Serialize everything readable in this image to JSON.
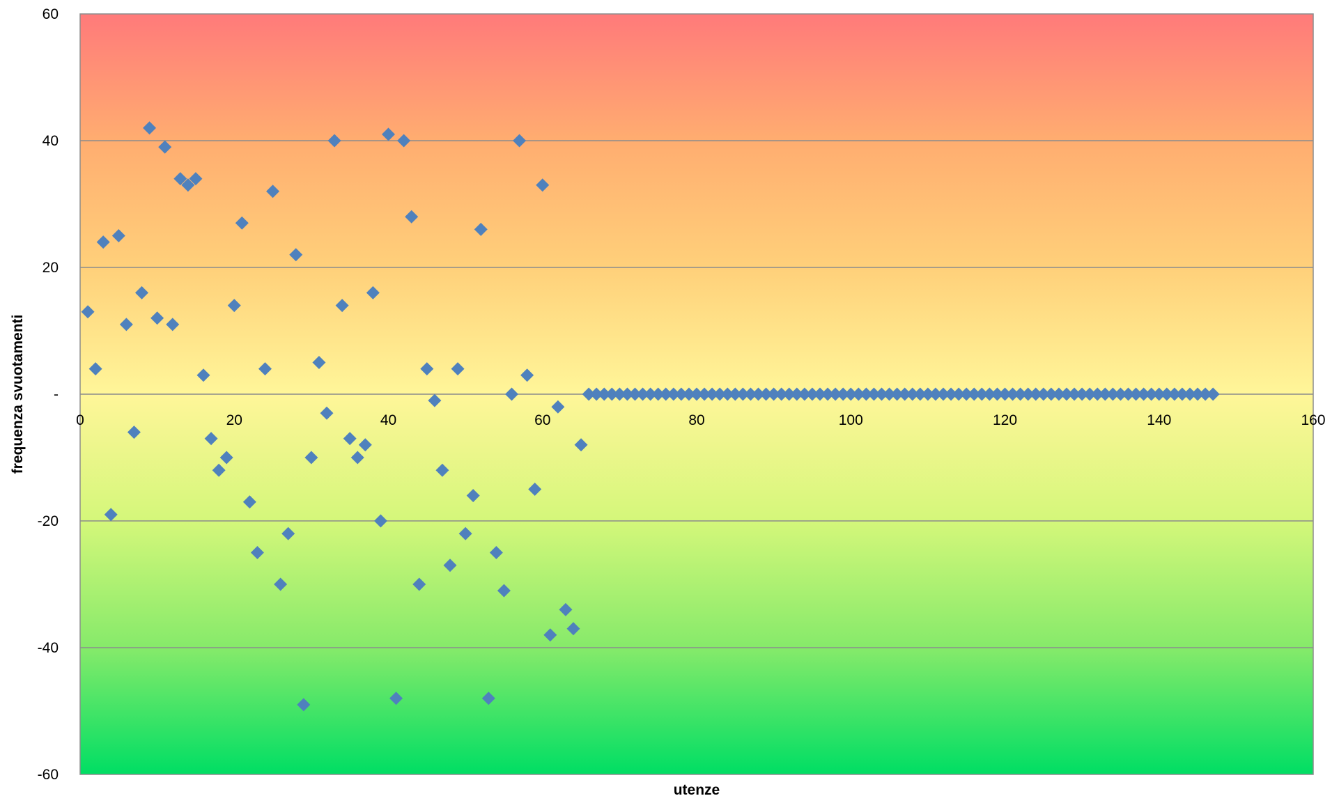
{
  "chart_data": {
    "type": "scatter",
    "title": "",
    "xlabel": "utenze",
    "ylabel": "frequenza svuotamenti",
    "xlim": [
      0,
      160
    ],
    "ylim": [
      -60,
      60
    ],
    "x_ticks": [
      0,
      20,
      40,
      60,
      80,
      100,
      120,
      140,
      160
    ],
    "y_ticks": [
      60,
      40,
      20,
      0,
      -20,
      -40,
      -60
    ],
    "y_tick_labels": [
      "60",
      "40",
      "20",
      "-",
      "-20",
      "-40",
      "-60"
    ],
    "grid": "horizontal",
    "legend": "none",
    "background_gradient": [
      "#ff7a7a",
      "#ffad70",
      "#ffd07a",
      "#fff699",
      "#d4f77a",
      "#86ea6a",
      "#00de64"
    ],
    "marker": {
      "shape": "diamond",
      "color": "#4f81bd"
    },
    "grid_color": "#8c8c8c",
    "series": [
      {
        "x": [
          1,
          2,
          3,
          4,
          5,
          6,
          7,
          8,
          9,
          10,
          11,
          12,
          13,
          14,
          15,
          16,
          17,
          18,
          19,
          20,
          21,
          22,
          23,
          24,
          25,
          26,
          27,
          28,
          29,
          30,
          31,
          32,
          33,
          34,
          35,
          36,
          37,
          38,
          39,
          40,
          41,
          42,
          43,
          44,
          45,
          46,
          47,
          48,
          49,
          50,
          51,
          52,
          53,
          54,
          55,
          56,
          57,
          58,
          59,
          60,
          61,
          62,
          63,
          64,
          65,
          66,
          67,
          68,
          69,
          70,
          71,
          72,
          73,
          74,
          75,
          76,
          77,
          78,
          79,
          80,
          81,
          82,
          83,
          84,
          85,
          86,
          87,
          88,
          89,
          90,
          91,
          92,
          93,
          94,
          95,
          96,
          97,
          98,
          99,
          100,
          101,
          102,
          103,
          104,
          105,
          106,
          107,
          108,
          109,
          110,
          111,
          112,
          113,
          114,
          115,
          116,
          117,
          118,
          119,
          120,
          121,
          122,
          123,
          124,
          125,
          126,
          127,
          128,
          129,
          130,
          131,
          132,
          133,
          134,
          135,
          136,
          137,
          138,
          139,
          140,
          141,
          142,
          143,
          144,
          145,
          146,
          147
        ],
        "y": [
          13,
          4,
          24,
          -19,
          25,
          11,
          -6,
          16,
          42,
          12,
          39,
          11,
          34,
          33,
          34,
          3,
          -7,
          -12,
          -10,
          14,
          27,
          -17,
          -25,
          4,
          32,
          -30,
          -22,
          22,
          -49,
          -10,
          5,
          -3,
          40,
          14,
          -7,
          -10,
          -8,
          16,
          -20,
          41,
          -48,
          40,
          28,
          -30,
          4,
          -1,
          -12,
          -27,
          4,
          -22,
          -16,
          26,
          -48,
          -25,
          -31,
          0,
          40,
          3,
          -15,
          33,
          -38,
          -2,
          -34,
          -37,
          -8,
          0,
          0,
          0,
          0,
          0,
          0,
          0,
          0,
          0,
          0,
          0,
          0,
          0,
          0,
          0,
          0,
          0,
          0,
          0,
          0,
          0,
          0,
          0,
          0,
          0,
          0,
          0,
          0,
          0,
          0,
          0,
          0,
          0,
          0,
          0,
          0,
          0,
          0,
          0,
          0,
          0,
          0,
          0,
          0,
          0,
          0,
          0,
          0,
          0,
          0,
          0,
          0,
          0,
          0,
          0,
          0,
          0,
          0,
          0,
          0,
          0,
          0,
          0,
          0,
          0,
          0,
          0,
          0,
          0,
          0,
          0,
          0,
          0,
          0,
          0,
          0,
          0,
          0,
          0,
          0,
          0,
          0
        ]
      }
    ]
  }
}
